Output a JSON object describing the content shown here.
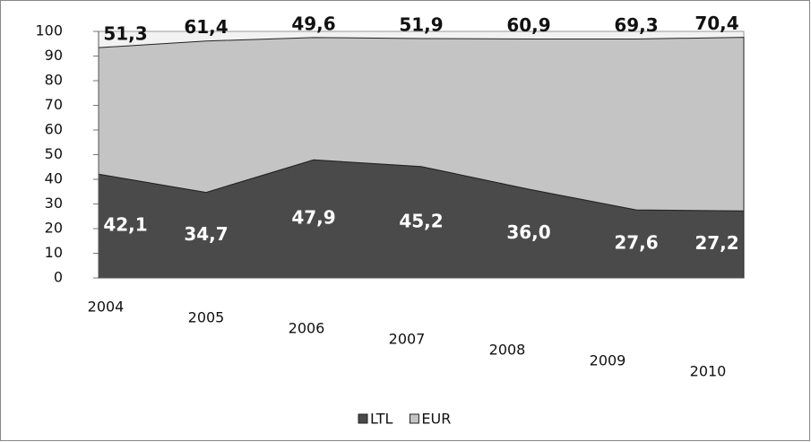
{
  "chart_data": {
    "type": "area",
    "stacked": true,
    "categories": [
      "2004",
      "2005",
      "2006",
      "2007",
      "2008",
      "2009",
      "2010"
    ],
    "series": [
      {
        "name": "LTL",
        "color": "#4a4a4a",
        "label_color": "#ffffff",
        "values": [
          42.1,
          34.7,
          47.9,
          45.2,
          36.0,
          27.6,
          27.2
        ],
        "value_labels": [
          "42,1",
          "34,7",
          "47,9",
          "45,2",
          "36,0",
          "27,6",
          "27,2"
        ]
      },
      {
        "name": "EUR",
        "color": "#c4c4c4",
        "label_color": "#111111",
        "values": [
          51.3,
          61.4,
          49.6,
          51.9,
          60.9,
          69.3,
          70.4
        ],
        "value_labels": [
          "51,3",
          "61,4",
          "49,6",
          "51,9",
          "60,9",
          "69,3",
          "70,4"
        ]
      }
    ],
    "ylim": [
      0,
      100
    ],
    "yticks": [
      0,
      10,
      20,
      30,
      40,
      50,
      60,
      70,
      80,
      90,
      100
    ],
    "legend": "bottom"
  }
}
